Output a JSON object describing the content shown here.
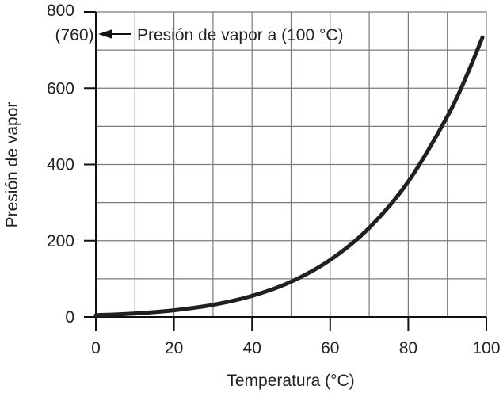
{
  "chart_data": {
    "type": "line",
    "title": "",
    "xlabel": "Temperatura (°C)",
    "ylabel": "Presión de vapor",
    "xlim": [
      0,
      100
    ],
    "ylim": [
      0,
      800
    ],
    "x_ticks": [
      0,
      20,
      40,
      60,
      80,
      100
    ],
    "y_ticks": [
      0,
      200,
      400,
      600,
      800
    ],
    "x_tick_labels": [
      "0",
      "20",
      "40",
      "60",
      "80",
      "100"
    ],
    "y_tick_labels": [
      "0",
      "200",
      "400",
      "600",
      "800"
    ],
    "grid": true,
    "grid_x_step": 10,
    "grid_y_step": 100,
    "line_color": "#231f20",
    "series": [
      {
        "x": [
          0,
          10,
          20,
          30,
          40,
          50,
          60,
          70,
          80,
          90,
          95,
          99
        ],
        "values": [
          4.6,
          9.2,
          17.5,
          31.8,
          55.3,
          92.5,
          149.4,
          233.7,
          355.1,
          525.8,
          633.9,
          733.2
        ]
      }
    ],
    "annotation": {
      "value_label": "(760)",
      "value": 760,
      "text": "Presión de vapor a (100 °C)"
    }
  }
}
